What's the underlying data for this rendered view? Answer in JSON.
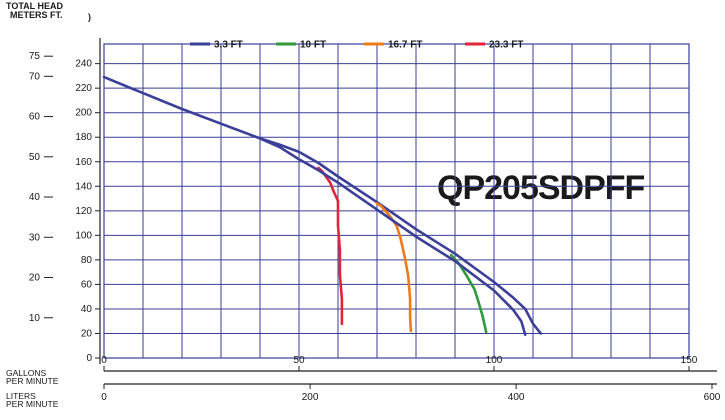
{
  "chart_data": {
    "type": "line",
    "title": "QP205SDPFF",
    "y_title_top": "TOTAL  HEAD",
    "y_title_units": "METERS   FT.",
    "x_units_gpm": [
      "GALLONS",
      "PER MINUTE"
    ],
    "x_units_lpm": [
      "LITERS",
      "PER MINUTE"
    ],
    "y_ft_ticks": [
      0,
      20,
      40,
      60,
      80,
      100,
      120,
      140,
      160,
      180,
      200,
      220,
      240
    ],
    "y_ft_tick_labels": [
      "0",
      "20",
      "40",
      "60",
      "80",
      "100",
      "120",
      "140",
      "160",
      "180",
      "200",
      "220",
      "240"
    ],
    "y_m_ticks": [
      10,
      20,
      30,
      40,
      50,
      60,
      70,
      75
    ],
    "y_m_tick_labels": [
      "10",
      "20",
      "30",
      "40",
      "50",
      "60",
      "70",
      "75"
    ],
    "x_gpm_ticks": [
      0,
      50,
      100,
      150
    ],
    "x_gpm_tick_labels": [
      "0",
      "50",
      "100",
      "150"
    ],
    "x_lpm_ticks": [
      0,
      200,
      400,
      600
    ],
    "x_lpm_tick_labels": [
      "0",
      "200",
      "400",
      "600"
    ],
    "xlim_gpm": [
      0,
      150
    ],
    "ylim_ft": [
      0,
      240
    ],
    "grid": true,
    "legend_position": "top",
    "series": [
      {
        "name": "3.3 FT",
        "color": "#3b3f9a",
        "points": [
          [
            0,
            229
          ],
          [
            10,
            216
          ],
          [
            20,
            203
          ],
          [
            30,
            191
          ],
          [
            40,
            179
          ],
          [
            45,
            174
          ],
          [
            50,
            168
          ],
          [
            55,
            159
          ],
          [
            60,
            148
          ],
          [
            70,
            127
          ],
          [
            80,
            105
          ],
          [
            90,
            85
          ],
          [
            100,
            62
          ],
          [
            105,
            49
          ],
          [
            108,
            40
          ],
          [
            110,
            28
          ],
          [
            112,
            20
          ]
        ]
      },
      {
        "name": "10 FT",
        "color": "#2e9a3a",
        "points": [
          [
            89,
            84
          ],
          [
            91,
            77
          ],
          [
            93,
            67
          ],
          [
            95,
            56
          ],
          [
            96,
            46
          ],
          [
            97,
            35
          ],
          [
            97.5,
            28
          ],
          [
            98,
            21
          ]
        ]
      },
      {
        "name": "16.7 FT",
        "color": "#f07a1a",
        "points": [
          [
            70,
            126
          ],
          [
            71,
            124
          ],
          [
            73,
            117
          ],
          [
            75,
            108
          ],
          [
            76,
            98
          ],
          [
            77,
            84
          ],
          [
            78,
            67
          ],
          [
            78.5,
            48
          ],
          [
            78.5,
            33
          ],
          [
            78.7,
            22
          ]
        ]
      },
      {
        "name": "23.3 FT",
        "color": "#e0253a",
        "points": [
          [
            55,
            155
          ],
          [
            56,
            152
          ],
          [
            58,
            143
          ],
          [
            59,
            135
          ],
          [
            60,
            128
          ],
          [
            60,
            108
          ],
          [
            60.5,
            88
          ],
          [
            60.5,
            68
          ],
          [
            61,
            48
          ],
          [
            61,
            28
          ]
        ]
      },
      {
        "name": "",
        "color": "#3b3f9a",
        "points": [
          [
            40,
            179
          ],
          [
            45,
            172
          ],
          [
            50,
            162
          ],
          [
            55,
            153
          ],
          [
            60,
            143
          ],
          [
            70,
            121
          ],
          [
            80,
            99
          ],
          [
            90,
            79
          ],
          [
            100,
            55
          ],
          [
            105,
            39
          ],
          [
            107,
            30
          ],
          [
            108,
            19
          ]
        ]
      }
    ]
  }
}
